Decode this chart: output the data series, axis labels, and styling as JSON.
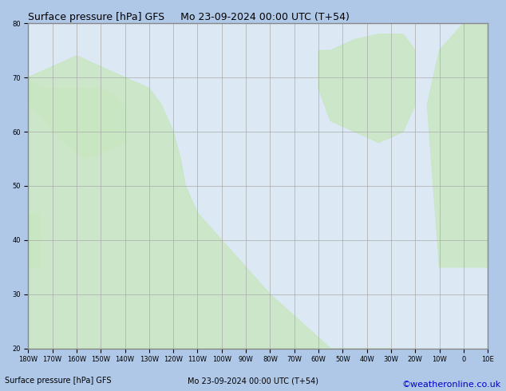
{
  "title": "Surface pressure [hPa] GFS",
  "subtitle": "Mo 23-09-2024 00:00 UTC (T+54)",
  "credit": "©weatheronline.co.uk",
  "background_land": "#c8e6c0",
  "background_ocean": "#dce9f5",
  "grid_color": "#aaaaaa",
  "border_color": "#888888",
  "contour_color_black": "#000000",
  "contour_color_blue": "#0000cc",
  "contour_color_red": "#cc0000",
  "label_fontsize": 7,
  "title_fontsize": 9,
  "credit_fontsize": 8,
  "xlim": [
    -180,
    10
  ],
  "ylim": [
    20,
    80
  ],
  "figsize": [
    6.34,
    4.9
  ],
  "dpi": 100
}
